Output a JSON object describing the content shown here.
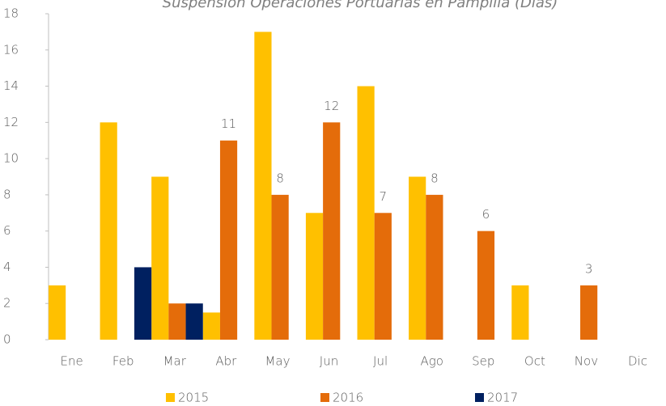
{
  "chart_data": {
    "type": "bar",
    "title": "Suspensión Operaciones Portuarias en Pampilla (Días)",
    "categories": [
      "Ene",
      "Feb",
      "Mar",
      "Abr",
      "May",
      "Jun",
      "Jul",
      "Ago",
      "Sep",
      "Oct",
      "Nov",
      "Dic"
    ],
    "series": [
      {
        "name": "2015",
        "color": "#ffc000",
        "values": [
          3,
          12,
          9,
          1.5,
          17,
          7,
          14,
          9,
          null,
          3,
          null,
          null
        ]
      },
      {
        "name": "2016",
        "color": "#e46c0a",
        "values": [
          null,
          null,
          2,
          11,
          8,
          12,
          7,
          8,
          6,
          null,
          3,
          null
        ],
        "value_labels": [
          null,
          null,
          null,
          "11",
          "8",
          "12",
          "7",
          "8",
          "6",
          null,
          "3",
          null
        ]
      },
      {
        "name": "2017",
        "color": "#002060",
        "values": [
          null,
          4,
          2,
          null,
          null,
          null,
          null,
          null,
          null,
          null,
          null,
          null
        ]
      }
    ],
    "ylim": [
      0,
      18
    ],
    "yticks": [
      0,
      2,
      4,
      6,
      8,
      10,
      12,
      14,
      16,
      18
    ],
    "legend": "bottom"
  }
}
